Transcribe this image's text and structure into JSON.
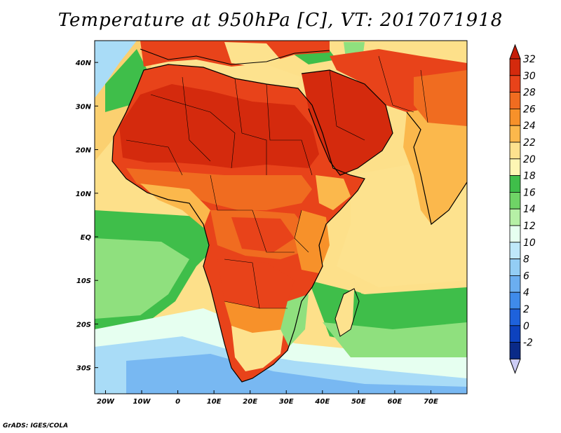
{
  "title": "Temperature at 950hPa [C], VT: 2017071918",
  "footer": "GrADS: IGES/COLA",
  "map": {
    "region": "Africa, Arabia and western Indian Ocean",
    "lon_range": [
      -23,
      80
    ],
    "lat_range": [
      -36,
      45
    ],
    "lon_ticks": [
      {
        "label": "20W",
        "value": -20
      },
      {
        "label": "10W",
        "value": -10
      },
      {
        "label": "0",
        "value": 0
      },
      {
        "label": "10E",
        "value": 10
      },
      {
        "label": "20E",
        "value": 20
      },
      {
        "label": "30E",
        "value": 30
      },
      {
        "label": "40E",
        "value": 40
      },
      {
        "label": "50E",
        "value": 50
      },
      {
        "label": "60E",
        "value": 60
      },
      {
        "label": "70E",
        "value": 70
      }
    ],
    "lat_ticks": [
      {
        "label": "40N",
        "value": 40
      },
      {
        "label": "30N",
        "value": 30
      },
      {
        "label": "20N",
        "value": 20
      },
      {
        "label": "10N",
        "value": 10
      },
      {
        "label": "EQ",
        "value": 0
      },
      {
        "label": "10S",
        "value": -10
      },
      {
        "label": "20S",
        "value": -20
      },
      {
        "label": "30S",
        "value": -30
      }
    ]
  },
  "colorbar": {
    "levels": [
      {
        "label": "32",
        "value": 32,
        "color": "#d42a0d"
      },
      {
        "label": "30",
        "value": 30,
        "color": "#e8431a"
      },
      {
        "label": "28",
        "value": 28,
        "color": "#f06c20"
      },
      {
        "label": "26",
        "value": 26,
        "color": "#f7912a"
      },
      {
        "label": "24",
        "value": 24,
        "color": "#fbb84c"
      },
      {
        "label": "22",
        "value": 22,
        "color": "#fde28e"
      },
      {
        "label": "20",
        "value": 20,
        "color": "#fdf6b4"
      },
      {
        "label": "18",
        "value": 18,
        "color": "#3fbe4a"
      },
      {
        "label": "16",
        "value": 16,
        "color": "#6fd466"
      },
      {
        "label": "14",
        "value": 14,
        "color": "#b6f0a6"
      },
      {
        "label": "12",
        "value": 12,
        "color": "#e6fff0"
      },
      {
        "label": "10",
        "value": 10,
        "color": "#bfe8fa"
      },
      {
        "label": "8",
        "value": 8,
        "color": "#93cdf5"
      },
      {
        "label": "6",
        "value": 6,
        "color": "#6baef0"
      },
      {
        "label": "4",
        "value": 4,
        "color": "#3f8bea"
      },
      {
        "label": "2",
        "value": 2,
        "color": "#1e62dc"
      },
      {
        "label": "0",
        "value": 0,
        "color": "#0d42be"
      },
      {
        "label": "-2",
        "value": -2,
        "color": "#0a2a88"
      }
    ],
    "top_arrow_color": "#c61d0a",
    "bottom_arrow_color": "#ccccf5"
  },
  "palette": {
    "ocean_warm": "#fde08a",
    "ocean_mid": "#fbd070",
    "ocean_green": "#3fbe4a",
    "ocean_lightgreen": "#8fe07e",
    "ocean_cyan": "#e6fff0",
    "ocean_lightblue": "#a9dcf7",
    "ocean_blue": "#78b8f2",
    "sahara": "#d42a0d",
    "land_hot": "#e8431a",
    "land_warm": "#f06c20",
    "land_orange": "#f7912a",
    "land_mild": "#fbb84c",
    "land_cool": "#fde28e"
  }
}
